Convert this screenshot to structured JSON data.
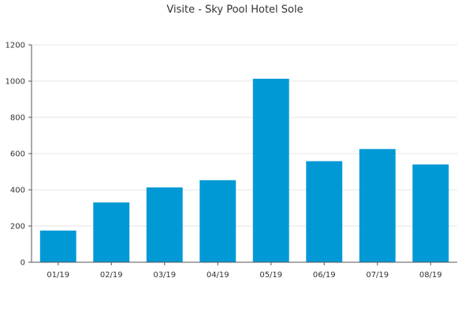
{
  "chart_data": {
    "type": "bar",
    "title": "Visite - Sky Pool Hotel Sole",
    "xlabel": "",
    "ylabel": "",
    "categories": [
      "01/19",
      "02/19",
      "03/19",
      "04/19",
      "05/19",
      "06/19",
      "07/19",
      "08/19"
    ],
    "values": [
      175,
      330,
      413,
      453,
      1013,
      558,
      625,
      540
    ],
    "ylim": [
      0,
      1200
    ],
    "yticks": [
      0,
      200,
      400,
      600,
      800,
      1000,
      1200
    ],
    "grid": true,
    "bar_color": "#0099d6"
  }
}
